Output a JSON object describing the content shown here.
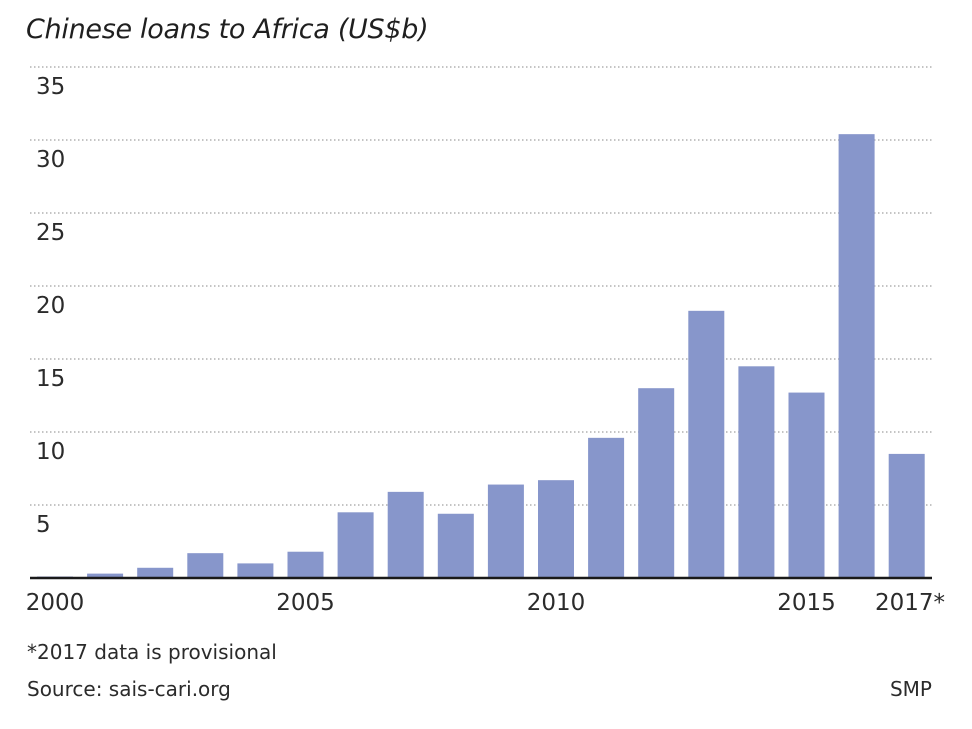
{
  "title": "Chinese loans to Africa (US$b)",
  "footnote": "*2017 data is provisional",
  "source": "Source: sais-cari.org",
  "credit": "SMP",
  "colors": {
    "bar": "#8796cb",
    "grid": "#8a8a8a",
    "axis": "#1a1a1a"
  },
  "chart_data": {
    "type": "bar",
    "title": "Chinese loans to Africa (US$b)",
    "xlabel": "",
    "ylabel": "",
    "ylim": [
      0,
      35
    ],
    "yticks": [
      5,
      10,
      15,
      20,
      25,
      30,
      35
    ],
    "grid": "horizontal dotted",
    "categories": [
      "2000",
      "2001",
      "2002",
      "2003",
      "2004",
      "2005",
      "2006",
      "2007",
      "2008",
      "2009",
      "2010",
      "2011",
      "2012",
      "2013",
      "2014",
      "2015",
      "2016",
      "2017*"
    ],
    "values": [
      0.1,
      0.3,
      0.7,
      1.7,
      1.0,
      1.8,
      4.5,
      5.9,
      4.4,
      6.4,
      6.7,
      9.6,
      13.0,
      18.3,
      14.5,
      12.7,
      30.4,
      8.5
    ],
    "xtick_labels": [
      "2000",
      "2005",
      "2010",
      "2015",
      "2017*"
    ]
  }
}
